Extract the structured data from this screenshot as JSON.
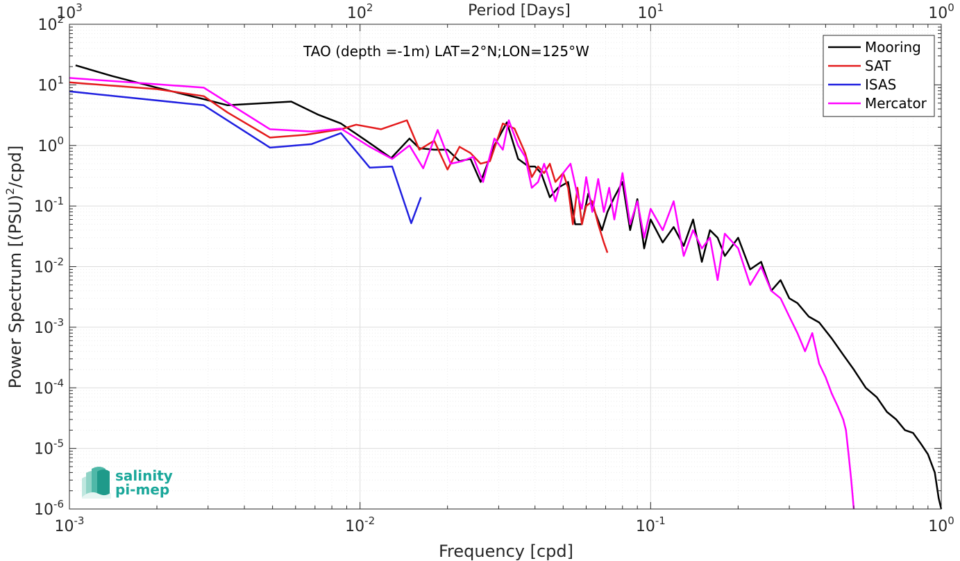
{
  "chart_data": {
    "type": "line",
    "title": "",
    "annotation": "TAO (depth =-1m) LAT=2°N;LON=125°W",
    "xlabel": "Frequency [cpd]",
    "ylabel_prefix": "Power Spectrum [(PSU)",
    "ylabel_sup": "2",
    "ylabel_suffix": "/cpd]",
    "x2label": "Period [Days]",
    "xscale": "log",
    "yscale": "log",
    "xlim": [
      0.001,
      1
    ],
    "ylim": [
      1e-06,
      100
    ],
    "grid": true,
    "legend_position": "top-right",
    "x_ticks": [
      {
        "value": 0.001,
        "base": "10",
        "exp": "-3"
      },
      {
        "value": 0.01,
        "base": "10",
        "exp": "-2"
      },
      {
        "value": 0.1,
        "base": "10",
        "exp": "-1"
      },
      {
        "value": 1,
        "base": "10",
        "exp": "0"
      }
    ],
    "x2_ticks": [
      {
        "value": 0.001,
        "base": "10",
        "exp": "3"
      },
      {
        "value": 0.01,
        "base": "10",
        "exp": "2"
      },
      {
        "value": 0.1,
        "base": "10",
        "exp": "1"
      },
      {
        "value": 1,
        "base": "10",
        "exp": "0"
      }
    ],
    "y_ticks": [
      {
        "value": 1e-06,
        "base": "10",
        "exp": "-6"
      },
      {
        "value": 1e-05,
        "base": "10",
        "exp": "-5"
      },
      {
        "value": 0.0001,
        "base": "10",
        "exp": "-4"
      },
      {
        "value": 0.001,
        "base": "10",
        "exp": "-3"
      },
      {
        "value": 0.01,
        "base": "10",
        "exp": "-2"
      },
      {
        "value": 0.1,
        "base": "10",
        "exp": "-1"
      },
      {
        "value": 1,
        "base": "10",
        "exp": "0"
      },
      {
        "value": 10,
        "base": "10",
        "exp": "1"
      },
      {
        "value": 100,
        "base": "10",
        "exp": "2"
      }
    ],
    "series": [
      {
        "name": "Mooring",
        "color": "#000000",
        "points": [
          [
            0.00105,
            21
          ],
          [
            0.0014,
            14
          ],
          [
            0.002,
            9
          ],
          [
            0.0029,
            5.8
          ],
          [
            0.0035,
            4.6
          ],
          [
            0.0058,
            5.3
          ],
          [
            0.0072,
            3.2
          ],
          [
            0.0086,
            2.3
          ],
          [
            0.0105,
            1.2
          ],
          [
            0.0128,
            0.62
          ],
          [
            0.0148,
            1.3
          ],
          [
            0.016,
            0.9
          ],
          [
            0.018,
            0.85
          ],
          [
            0.02,
            0.85
          ],
          [
            0.022,
            0.55
          ],
          [
            0.024,
            0.6
          ],
          [
            0.026,
            0.25
          ],
          [
            0.029,
            1.0
          ],
          [
            0.032,
            2.4
          ],
          [
            0.035,
            0.6
          ],
          [
            0.038,
            0.45
          ],
          [
            0.04,
            0.45
          ],
          [
            0.042,
            0.35
          ],
          [
            0.045,
            0.14
          ],
          [
            0.048,
            0.2
          ],
          [
            0.052,
            0.25
          ],
          [
            0.055,
            0.05
          ],
          [
            0.058,
            0.05
          ],
          [
            0.061,
            0.16
          ],
          [
            0.065,
            0.07
          ],
          [
            0.068,
            0.04
          ],
          [
            0.071,
            0.08
          ],
          [
            0.075,
            0.14
          ],
          [
            0.08,
            0.25
          ],
          [
            0.085,
            0.04
          ],
          [
            0.09,
            0.13
          ],
          [
            0.095,
            0.02
          ],
          [
            0.1,
            0.06
          ],
          [
            0.11,
            0.025
          ],
          [
            0.12,
            0.045
          ],
          [
            0.13,
            0.022
          ],
          [
            0.14,
            0.06
          ],
          [
            0.15,
            0.012
          ],
          [
            0.16,
            0.04
          ],
          [
            0.17,
            0.03
          ],
          [
            0.18,
            0.015
          ],
          [
            0.2,
            0.03
          ],
          [
            0.22,
            0.009
          ],
          [
            0.24,
            0.012
          ],
          [
            0.26,
            0.004
          ],
          [
            0.28,
            0.006
          ],
          [
            0.3,
            0.003
          ],
          [
            0.32,
            0.0025
          ],
          [
            0.35,
            0.0015
          ],
          [
            0.38,
            0.0012
          ],
          [
            0.42,
            0.00065
          ],
          [
            0.46,
            0.00035
          ],
          [
            0.5,
            0.0002
          ],
          [
            0.55,
            0.0001
          ],
          [
            0.6,
            7e-05
          ],
          [
            0.65,
            4e-05
          ],
          [
            0.7,
            3e-05
          ],
          [
            0.75,
            2e-05
          ],
          [
            0.8,
            1.8e-05
          ],
          [
            0.85,
            1.2e-05
          ],
          [
            0.9,
            8e-06
          ],
          [
            0.95,
            4e-06
          ],
          [
            0.98,
            1.5e-06
          ],
          [
            1.0,
            1e-06
          ]
        ]
      },
      {
        "name": "SAT",
        "color": "#e41a1c",
        "points": [
          [
            0.001,
            11
          ],
          [
            0.002,
            8.5
          ],
          [
            0.0029,
            6.5
          ],
          [
            0.0035,
            3.5
          ],
          [
            0.0049,
            1.35
          ],
          [
            0.0065,
            1.5
          ],
          [
            0.0086,
            1.85
          ],
          [
            0.0097,
            2.2
          ],
          [
            0.0118,
            1.85
          ],
          [
            0.0145,
            2.6
          ],
          [
            0.016,
            0.85
          ],
          [
            0.018,
            1.2
          ],
          [
            0.02,
            0.4
          ],
          [
            0.022,
            0.95
          ],
          [
            0.024,
            0.75
          ],
          [
            0.026,
            0.5
          ],
          [
            0.028,
            0.55
          ],
          [
            0.031,
            2.3
          ],
          [
            0.034,
            1.9
          ],
          [
            0.037,
            0.75
          ],
          [
            0.039,
            0.3
          ],
          [
            0.041,
            0.45
          ],
          [
            0.043,
            0.35
          ],
          [
            0.045,
            0.5
          ],
          [
            0.047,
            0.25
          ],
          [
            0.05,
            0.35
          ],
          [
            0.052,
            0.2
          ],
          [
            0.054,
            0.05
          ],
          [
            0.056,
            0.2
          ],
          [
            0.058,
            0.05
          ],
          [
            0.06,
            0.1
          ],
          [
            0.063,
            0.12
          ],
          [
            0.066,
            0.05
          ],
          [
            0.069,
            0.025
          ],
          [
            0.071,
            0.017
          ]
        ]
      },
      {
        "name": "ISAS",
        "color": "#1f1fe0",
        "points": [
          [
            0.001,
            7.8
          ],
          [
            0.0029,
            4.6
          ],
          [
            0.0049,
            0.92
          ],
          [
            0.0068,
            1.05
          ],
          [
            0.0086,
            1.6
          ],
          [
            0.0108,
            0.43
          ],
          [
            0.0129,
            0.45
          ],
          [
            0.015,
            0.052
          ],
          [
            0.0162,
            0.14
          ]
        ]
      },
      {
        "name": "Mercator",
        "color": "#ff00ff",
        "points": [
          [
            0.001,
            13
          ],
          [
            0.0029,
            9
          ],
          [
            0.0049,
            1.85
          ],
          [
            0.0068,
            1.7
          ],
          [
            0.0086,
            1.9
          ],
          [
            0.0108,
            0.95
          ],
          [
            0.0129,
            0.6
          ],
          [
            0.0148,
            1.0
          ],
          [
            0.0165,
            0.42
          ],
          [
            0.0185,
            1.8
          ],
          [
            0.0205,
            0.5
          ],
          [
            0.0225,
            0.55
          ],
          [
            0.0245,
            0.65
          ],
          [
            0.0265,
            0.25
          ],
          [
            0.029,
            1.3
          ],
          [
            0.031,
            0.85
          ],
          [
            0.0325,
            2.6
          ],
          [
            0.035,
            1.0
          ],
          [
            0.037,
            0.65
          ],
          [
            0.039,
            0.2
          ],
          [
            0.041,
            0.25
          ],
          [
            0.043,
            0.5
          ],
          [
            0.045,
            0.25
          ],
          [
            0.047,
            0.12
          ],
          [
            0.05,
            0.35
          ],
          [
            0.053,
            0.5
          ],
          [
            0.056,
            0.15
          ],
          [
            0.058,
            0.09
          ],
          [
            0.06,
            0.3
          ],
          [
            0.063,
            0.08
          ],
          [
            0.066,
            0.28
          ],
          [
            0.069,
            0.08
          ],
          [
            0.072,
            0.2
          ],
          [
            0.075,
            0.06
          ],
          [
            0.08,
            0.35
          ],
          [
            0.085,
            0.05
          ],
          [
            0.09,
            0.12
          ],
          [
            0.095,
            0.03
          ],
          [
            0.1,
            0.09
          ],
          [
            0.11,
            0.04
          ],
          [
            0.12,
            0.12
          ],
          [
            0.13,
            0.015
          ],
          [
            0.14,
            0.04
          ],
          [
            0.15,
            0.02
          ],
          [
            0.16,
            0.03
          ],
          [
            0.17,
            0.006
          ],
          [
            0.18,
            0.035
          ],
          [
            0.2,
            0.02
          ],
          [
            0.22,
            0.005
          ],
          [
            0.24,
            0.01
          ],
          [
            0.26,
            0.004
          ],
          [
            0.28,
            0.003
          ],
          [
            0.3,
            0.0015
          ],
          [
            0.32,
            0.0008
          ],
          [
            0.34,
            0.0004
          ],
          [
            0.36,
            0.0008
          ],
          [
            0.38,
            0.00025
          ],
          [
            0.4,
            0.00015
          ],
          [
            0.42,
            8e-05
          ],
          [
            0.44,
            5e-05
          ],
          [
            0.46,
            3e-05
          ],
          [
            0.47,
            2e-05
          ],
          [
            0.48,
            8e-06
          ],
          [
            0.49,
            3e-06
          ],
          [
            0.5,
            1e-06
          ]
        ]
      }
    ]
  },
  "logo": {
    "line1": "salinity",
    "line2": "pi-mep",
    "color": "#1aa79a"
  }
}
